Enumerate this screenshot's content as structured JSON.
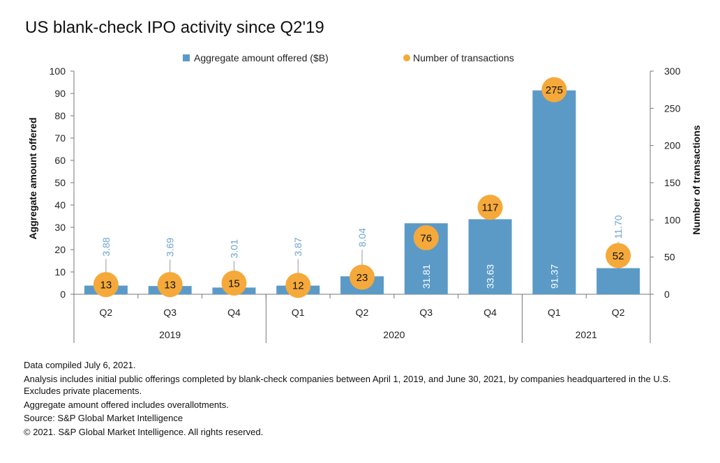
{
  "chart_data": {
    "type": "bar",
    "title": "US blank-check IPO activity since Q2'19",
    "categories": [
      "Q2",
      "Q3",
      "Q4",
      "Q1",
      "Q2",
      "Q3",
      "Q4",
      "Q1",
      "Q2"
    ],
    "year_groups": [
      {
        "label": "2019",
        "count": 3
      },
      {
        "label": "2020",
        "count": 4
      },
      {
        "label": "2021",
        "count": 2
      }
    ],
    "series": [
      {
        "name": "Aggregate amount offered ($B)",
        "kind": "bar",
        "axis": "left",
        "values": [
          3.88,
          3.69,
          3.01,
          3.87,
          8.04,
          31.81,
          33.63,
          91.37,
          11.7
        ],
        "labels": [
          "3.88",
          "3.69",
          "3.01",
          "3.87",
          "8.04",
          "31.81",
          "33.63",
          "91.37",
          "11.70"
        ]
      },
      {
        "name": "Number of transactions",
        "kind": "point",
        "axis": "right",
        "values": [
          13,
          13,
          15,
          12,
          23,
          76,
          117,
          275,
          52
        ],
        "labels": [
          "13",
          "13",
          "15",
          "12",
          "23",
          "76",
          "117",
          "275",
          "52"
        ]
      }
    ],
    "ylabel": "Aggregate amount offered",
    "y2label": "Number of transactions",
    "ylim": [
      0,
      100
    ],
    "y2lim": [
      0,
      300
    ],
    "yticks": [
      "0",
      "10",
      "20",
      "30",
      "40",
      "50",
      "60",
      "70",
      "80",
      "90",
      "100"
    ],
    "y2ticks": [
      "0",
      "50",
      "100",
      "150",
      "200",
      "250",
      "300"
    ],
    "grid": false,
    "legend_position": "top",
    "colors": {
      "bar": "#5b9ac7",
      "point": "#f5a93a",
      "bar_label": "#6fa3cf",
      "axis": "#777777"
    }
  },
  "notes": [
    "Data compiled July 6, 2021.",
    "Analysis includes initial public offerings completed by blank-check companies between April 1, 2019, and June 30, 2021, by companies headquartered in the U.S. Excludes private placements.",
    "Aggregate amount offered includes overallotments.",
    "Source: S&P Global Market Intelligence",
    "© 2021. S&P Global Market Intelligence. All rights reserved."
  ]
}
